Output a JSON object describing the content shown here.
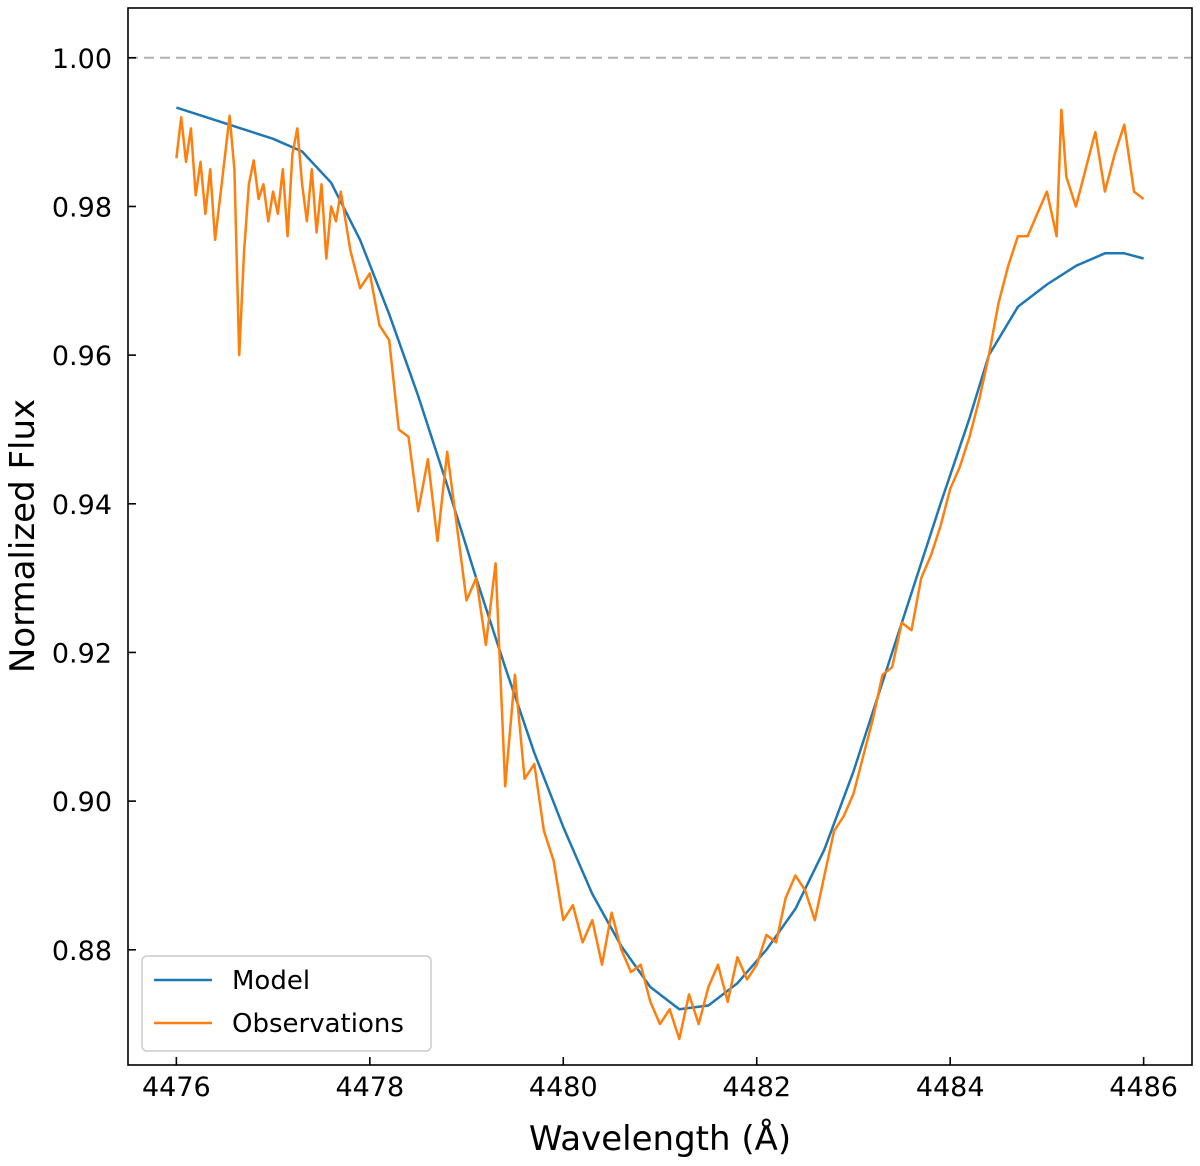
{
  "chart_data": {
    "type": "line",
    "xlabel": "Wavelength (Å)",
    "ylabel": "Normalized Flux",
    "xlim": [
      4475.5,
      4486.5
    ],
    "ylim": [
      0.8645,
      1.0067
    ],
    "xticks": [
      4476,
      4478,
      4480,
      4482,
      4484,
      4486
    ],
    "xtick_labels": [
      "4476",
      "4478",
      "4480",
      "4482",
      "4484",
      "4486"
    ],
    "yticks": [
      0.88,
      0.9,
      0.92,
      0.94,
      0.96,
      0.98,
      1.0
    ],
    "ytick_labels": [
      "0.88",
      "0.90",
      "0.92",
      "0.94",
      "0.96",
      "0.98",
      "1.00"
    ],
    "grid": false,
    "reference_line": {
      "y": 1.0,
      "style": "dashed",
      "color": "#b0b0b0"
    },
    "legend": {
      "position": "lower-left",
      "entries": [
        "Model",
        "Observations"
      ]
    },
    "series": [
      {
        "name": "Model",
        "color": "#1f77b4",
        "x": [
          4476.0,
          4476.5,
          4477.0,
          4477.3,
          4477.6,
          4477.9,
          4478.2,
          4478.5,
          4478.8,
          4479.1,
          4479.4,
          4479.7,
          4480.0,
          4480.3,
          4480.6,
          4480.9,
          4481.2,
          4481.5,
          4481.8,
          4482.1,
          4482.4,
          4482.7,
          4483.0,
          4483.3,
          4483.6,
          4483.9,
          4484.2,
          4484.4,
          4484.7,
          4485.0,
          4485.3,
          4485.6,
          4485.8,
          4486.0
        ],
        "y": [
          0.9933,
          0.9912,
          0.9891,
          0.9874,
          0.9832,
          0.9755,
          0.9655,
          0.9545,
          0.9425,
          0.93,
          0.918,
          0.9065,
          0.8965,
          0.8875,
          0.8805,
          0.875,
          0.872,
          0.8725,
          0.8755,
          0.88,
          0.8855,
          0.8935,
          0.904,
          0.916,
          0.928,
          0.94,
          0.9515,
          0.96,
          0.9665,
          0.9695,
          0.972,
          0.9737,
          0.9737,
          0.973
        ]
      },
      {
        "name": "Observations",
        "color": "#ff7f0e",
        "x": [
          4476.0,
          4476.05,
          4476.1,
          4476.15,
          4476.2,
          4476.25,
          4476.3,
          4476.35,
          4476.4,
          4476.45,
          4476.5,
          4476.55,
          4476.6,
          4476.65,
          4476.7,
          4476.75,
          4476.8,
          4476.85,
          4476.9,
          4476.95,
          4477.0,
          4477.05,
          4477.1,
          4477.15,
          4477.2,
          4477.25,
          4477.3,
          4477.35,
          4477.4,
          4477.45,
          4477.5,
          4477.55,
          4477.6,
          4477.65,
          4477.7,
          4477.8,
          4477.9,
          4478.0,
          4478.1,
          4478.2,
          4478.3,
          4478.4,
          4478.5,
          4478.6,
          4478.7,
          4478.8,
          4478.9,
          4479.0,
          4479.1,
          4479.2,
          4479.3,
          4479.4,
          4479.5,
          4479.6,
          4479.7,
          4479.8,
          4479.9,
          4480.0,
          4480.1,
          4480.2,
          4480.3,
          4480.4,
          4480.5,
          4480.6,
          4480.7,
          4480.8,
          4480.9,
          4481.0,
          4481.1,
          4481.2,
          4481.3,
          4481.4,
          4481.5,
          4481.6,
          4481.7,
          4481.8,
          4481.9,
          4482.0,
          4482.1,
          4482.2,
          4482.3,
          4482.4,
          4482.5,
          4482.6,
          4482.7,
          4482.8,
          4482.9,
          4483.0,
          4483.1,
          4483.2,
          4483.3,
          4483.4,
          4483.5,
          4483.6,
          4483.7,
          4483.8,
          4483.9,
          4484.0,
          4484.1,
          4484.2,
          4484.3,
          4484.4,
          4484.5,
          4484.6,
          4484.7,
          4484.8,
          4484.9,
          4485.0,
          4485.1,
          4485.15,
          4485.2,
          4485.3,
          4485.4,
          4485.5,
          4485.6,
          4485.7,
          4485.8,
          4485.9,
          4486.0
        ],
        "y": [
          0.9865,
          0.992,
          0.986,
          0.9905,
          0.9815,
          0.986,
          0.979,
          0.985,
          0.9755,
          0.981,
          0.9865,
          0.9922,
          0.985,
          0.96,
          0.974,
          0.983,
          0.9862,
          0.981,
          0.983,
          0.978,
          0.982,
          0.979,
          0.985,
          0.976,
          0.987,
          0.9905,
          0.983,
          0.978,
          0.985,
          0.9765,
          0.983,
          0.973,
          0.98,
          0.978,
          0.982,
          0.974,
          0.969,
          0.971,
          0.964,
          0.962,
          0.95,
          0.949,
          0.939,
          0.946,
          0.935,
          0.947,
          0.937,
          0.927,
          0.93,
          0.921,
          0.932,
          0.902,
          0.917,
          0.903,
          0.905,
          0.896,
          0.892,
          0.884,
          0.886,
          0.881,
          0.884,
          0.878,
          0.885,
          0.88,
          0.877,
          0.878,
          0.873,
          0.87,
          0.872,
          0.868,
          0.874,
          0.87,
          0.875,
          0.878,
          0.873,
          0.879,
          0.876,
          0.878,
          0.882,
          0.881,
          0.887,
          0.89,
          0.888,
          0.884,
          0.89,
          0.896,
          0.898,
          0.901,
          0.906,
          0.911,
          0.917,
          0.918,
          0.924,
          0.923,
          0.93,
          0.933,
          0.937,
          0.942,
          0.945,
          0.949,
          0.954,
          0.96,
          0.967,
          0.972,
          0.976,
          0.976,
          0.979,
          0.982,
          0.976,
          0.993,
          0.984,
          0.98,
          0.985,
          0.99,
          0.982,
          0.987,
          0.991,
          0.982,
          0.981
        ]
      }
    ]
  }
}
